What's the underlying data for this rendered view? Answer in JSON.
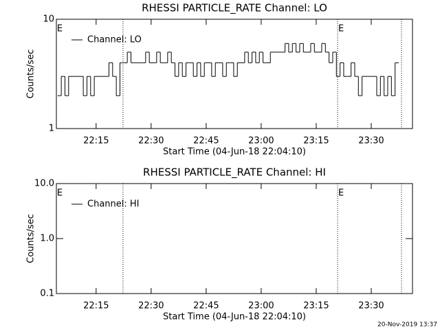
{
  "chart_data": [
    {
      "type": "line",
      "title": "RHESSI PARTICLE_RATE Channel: LO",
      "xlabel": "Start Time (04-Jun-18 22:04:10)",
      "ylabel": "Counts/sec",
      "log_y": true,
      "xlim": [
        "22:04:10",
        "23:41:15"
      ],
      "ylim": [
        1,
        10
      ],
      "yticks": [
        1,
        10
      ],
      "xticks": [
        "22:15",
        "22:30",
        "22:45",
        "23:00",
        "23:15",
        "23:30"
      ],
      "vlines": [
        "22:22:20",
        "23:20:50",
        "23:38:15"
      ],
      "annotations": [
        {
          "text": "E",
          "x": "22:04:10"
        },
        {
          "text": "E",
          "x": "23:20:50"
        }
      ],
      "legend": "upper left",
      "x": [
        "22:05",
        "22:06",
        "22:07",
        "22:08",
        "22:09",
        "22:10",
        "22:11",
        "22:12",
        "22:13",
        "22:14",
        "22:15",
        "22:16",
        "22:17",
        "22:18",
        "22:19",
        "22:20",
        "22:21",
        "22:22",
        "22:23",
        "22:24",
        "22:25",
        "22:26",
        "22:27",
        "22:28",
        "22:29",
        "22:30",
        "22:31",
        "22:32",
        "22:33",
        "22:34",
        "22:35",
        "22:36",
        "22:37",
        "22:38",
        "22:39",
        "22:40",
        "22:41",
        "22:42",
        "22:43",
        "22:44",
        "22:45",
        "22:46",
        "22:47",
        "22:48",
        "22:49",
        "22:50",
        "22:51",
        "22:52",
        "22:53",
        "22:54",
        "22:55",
        "22:56",
        "22:57",
        "22:58",
        "22:59",
        "23:00",
        "23:01",
        "23:02",
        "23:03",
        "23:04",
        "23:05",
        "23:06",
        "23:07",
        "23:08",
        "23:09",
        "23:10",
        "23:11",
        "23:12",
        "23:13",
        "23:14",
        "23:15",
        "23:16",
        "23:17",
        "23:18",
        "23:19",
        "23:20",
        "23:21",
        "23:22",
        "23:23",
        "23:24",
        "23:25",
        "23:26",
        "23:27",
        "23:28",
        "23:29",
        "23:30",
        "23:31",
        "23:32",
        "23:33",
        "23:34",
        "23:35",
        "23:36",
        "23:37"
      ],
      "series": [
        {
          "name": "Channel: LO",
          "color": "#000000",
          "values": [
            2,
            3,
            2,
            3,
            3,
            3,
            3,
            2,
            3,
            2,
            3,
            3,
            3,
            3,
            4,
            3,
            2,
            4,
            4,
            5,
            4,
            4,
            4,
            4,
            5,
            4,
            4,
            5,
            4,
            4,
            5,
            4,
            3,
            4,
            3,
            4,
            4,
            3,
            4,
            3,
            4,
            4,
            3,
            4,
            4,
            3,
            4,
            4,
            3,
            4,
            4,
            5,
            4,
            5,
            4,
            5,
            4,
            4,
            5,
            5,
            5,
            5,
            6,
            5,
            6,
            5,
            6,
            5,
            5,
            6,
            5,
            5,
            6,
            5,
            4,
            5,
            3,
            4,
            3,
            3,
            4,
            3,
            2,
            3,
            3,
            3,
            3,
            2,
            3,
            2,
            3,
            2,
            4
          ]
        }
      ]
    },
    {
      "type": "line",
      "title": "RHESSI PARTICLE_RATE Channel: HI",
      "xlabel": "Start Time (04-Jun-18 22:04:10)",
      "ylabel": "Counts/sec",
      "log_y": true,
      "xlim": [
        "22:04:10",
        "23:41:15"
      ],
      "ylim": [
        0.1,
        10
      ],
      "yticks": [
        0.1,
        {
          "value": 1,
          "label": "1.0"
        },
        {
          "value": 10,
          "label": "10.0"
        }
      ],
      "xticks": [
        "22:15",
        "22:30",
        "22:45",
        "23:00",
        "23:15",
        "23:30"
      ],
      "vlines": [
        "22:22:20",
        "23:20:50",
        "23:38:15"
      ],
      "annotations": [
        {
          "text": "E",
          "x": "22:04:10"
        },
        {
          "text": "E",
          "x": "23:20:50"
        }
      ],
      "legend": "upper left",
      "series": [
        {
          "name": "Channel: HI",
          "color": "#000000"
        }
      ]
    }
  ],
  "footer": "20-Nov-2019 13:37"
}
